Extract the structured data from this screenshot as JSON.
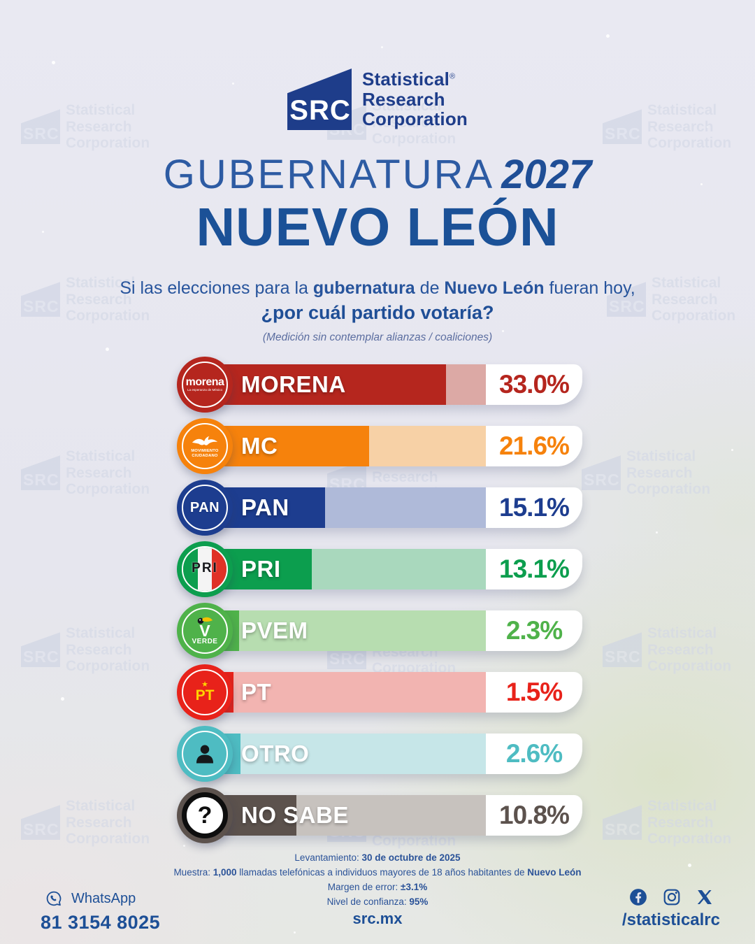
{
  "brand": {
    "abbr": "SRC",
    "lines": [
      "Statistical",
      "Research",
      "Corporation"
    ],
    "registered": "®"
  },
  "title": {
    "kicker_light": "GUBERNATURA",
    "kicker_year": "2027",
    "main": "NUEVO LEÓN"
  },
  "question": {
    "line1_parts": [
      {
        "t": "Si las elecciones para la "
      },
      {
        "t": "gubernatura",
        "b": 1
      },
      {
        "t": " de "
      },
      {
        "t": "Nuevo León",
        "b": 1
      },
      {
        "t": " fueran hoy,"
      }
    ],
    "line2": "¿por cuál partido votaría?"
  },
  "note": "(Medición sin contemplar alianzas / coaliciones)",
  "chart_data": {
    "type": "bar",
    "orientation": "horizontal",
    "unit": "%",
    "title": "Gubernatura 2027 Nuevo León — intención de voto por partido",
    "categories": [
      "MORENA",
      "MC",
      "PAN",
      "PRI",
      "PVEM",
      "PT",
      "OTRO",
      "NO SABE"
    ],
    "values": [
      33.0,
      21.6,
      15.1,
      13.1,
      2.3,
      1.5,
      2.6,
      10.8
    ],
    "value_labels": [
      "33.0%",
      "21.6%",
      "15.1%",
      "13.1%",
      "2.3%",
      "1.5%",
      "2.6%",
      "10.8%"
    ],
    "xlim": [
      0,
      38
    ],
    "grid": false,
    "legend": false,
    "parties": [
      {
        "id": "morena",
        "label": "MORENA",
        "value": 33.0,
        "value_label": "33.0%",
        "color": "#B5261E",
        "track_color": "#DCA9A5",
        "icon": "morena-logo",
        "badge_text": [
          "morena",
          "La esperanza de México"
        ]
      },
      {
        "id": "mc",
        "label": "MC",
        "value": 21.6,
        "value_label": "21.6%",
        "color": "#F6820C",
        "track_color": "#F7D1A6",
        "icon": "mc-logo",
        "badge_text": [
          "MOVIMIENTO",
          "CIUDADANO"
        ]
      },
      {
        "id": "pan",
        "label": "PAN",
        "value": 15.1,
        "value_label": "15.1%",
        "color": "#1D3D8F",
        "track_color": "#AFBAD9",
        "icon": "pan-logo",
        "badge_text": [
          "PAN"
        ]
      },
      {
        "id": "pri",
        "label": "PRI",
        "value": 13.1,
        "value_label": "13.1%",
        "color": "#0C9E4E",
        "track_color": "#A9D8BD",
        "icon": "pri-logo",
        "badge_text": [
          "PRI"
        ]
      },
      {
        "id": "pvem",
        "label": "PVEM",
        "value": 2.3,
        "value_label": "2.3%",
        "color": "#4FB24A",
        "track_color": "#B7DDB0",
        "icon": "pvem-logo",
        "badge_text": [
          "V",
          "VERDE"
        ]
      },
      {
        "id": "pt",
        "label": "PT",
        "value": 1.5,
        "value_label": "1.5%",
        "color": "#E8221A",
        "track_color": "#F2B4B1",
        "icon": "pt-logo",
        "badge_text": [
          "PT"
        ]
      },
      {
        "id": "otro",
        "label": "OTRO",
        "value": 2.6,
        "value_label": "2.6%",
        "color": "#4EBCC2",
        "track_color": "#C6E6E8",
        "icon": "person-icon",
        "badge_text": []
      },
      {
        "id": "nosabe",
        "label": "NO SABE",
        "value": 10.8,
        "value_label": "10.8%",
        "color": "#5C524D",
        "track_color": "#C7C2BE",
        "icon": "question-mark-icon",
        "badge_text": [
          "?"
        ]
      }
    ]
  },
  "methodology": {
    "lines": [
      [
        {
          "t": "Levantamiento: "
        },
        {
          "t": "30 de octubre de 2025",
          "b": 1
        }
      ],
      [
        {
          "t": "Muestra: "
        },
        {
          "t": "1,000",
          "b": 1
        },
        {
          "t": " llamadas telefónicas a individuos mayores de 18 años habitantes de "
        },
        {
          "t": "Nuevo León",
          "b": 1
        }
      ],
      [
        {
          "t": "Margen de error: "
        },
        {
          "t": "±3.1%",
          "b": 1
        }
      ],
      [
        {
          "t": "Nivel de confianza: "
        },
        {
          "t": "95%",
          "b": 1
        }
      ]
    ]
  },
  "footer": {
    "whatsapp_label": "WhatsApp",
    "phone": "81 3154 8025",
    "website": "src.mx",
    "social_handle": "/statisticalrc"
  }
}
